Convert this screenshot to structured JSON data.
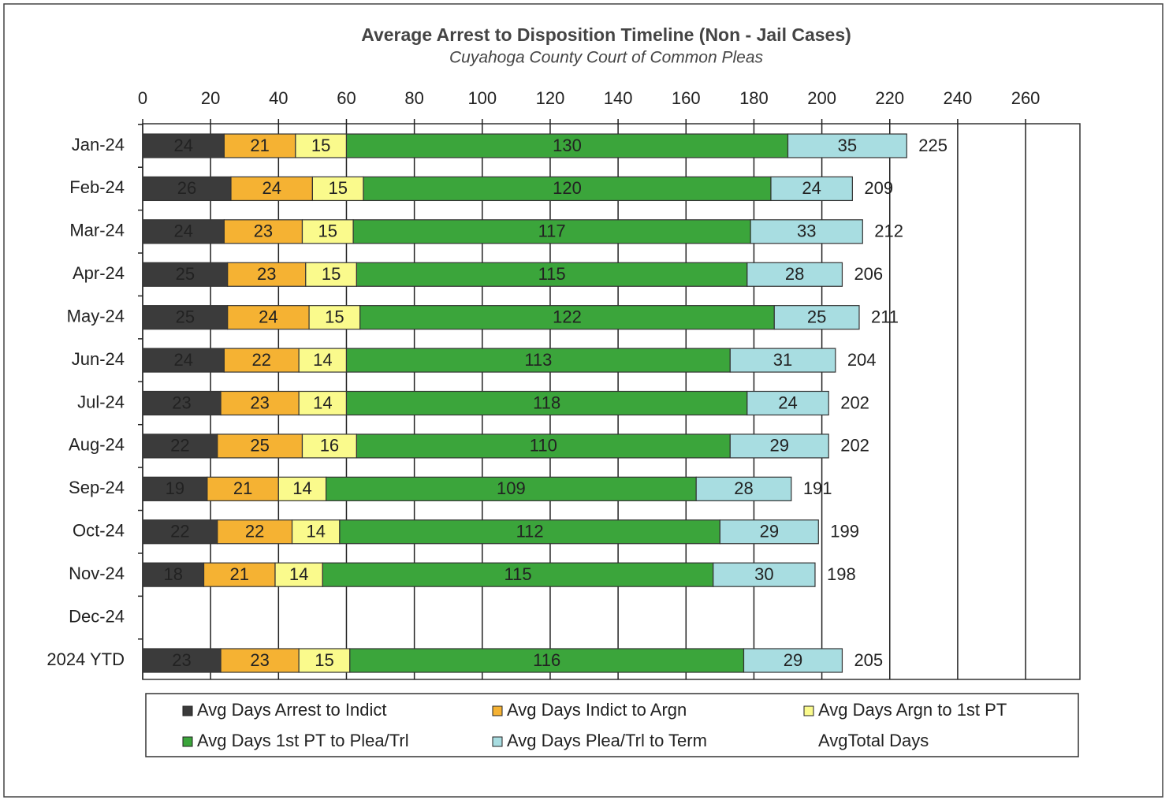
{
  "chart_data": {
    "type": "stacked-barh",
    "title": "Average Arrest to Disposition  Timeline (Non - Jail Cases)",
    "subtitle": "Cuyahoga County Court of Common Pleas",
    "categories": [
      "Jan-24",
      "Feb-24",
      "Mar-24",
      "Apr-24",
      "May-24",
      "Jun-24",
      "Jul-24",
      "Aug-24",
      "Sep-24",
      "Oct-24",
      "Nov-24",
      "Dec-24",
      "2024 YTD"
    ],
    "series": [
      {
        "name": "Avg Days Arrest to Indict",
        "color": "#3b3b3b",
        "values": [
          24,
          26,
          24,
          25,
          25,
          24,
          23,
          22,
          19,
          22,
          18,
          null,
          23
        ]
      },
      {
        "name": "Avg Days Indict to Argn",
        "color": "#f5b233",
        "values": [
          21,
          24,
          23,
          23,
          24,
          22,
          23,
          25,
          21,
          22,
          21,
          null,
          23
        ]
      },
      {
        "name": "Avg Days Argn to 1st PT",
        "color": "#fafa8c",
        "values": [
          15,
          15,
          15,
          15,
          15,
          14,
          14,
          16,
          14,
          14,
          14,
          null,
          15
        ]
      },
      {
        "name": "Avg Days 1st PT to Plea/Trl",
        "color": "#3ba53b",
        "values": [
          130,
          120,
          117,
          115,
          122,
          113,
          118,
          110,
          109,
          112,
          115,
          null,
          116
        ]
      },
      {
        "name": "Avg Days Plea/Trl to Term",
        "color": "#a8dde1",
        "values": [
          35,
          24,
          33,
          28,
          25,
          31,
          24,
          29,
          28,
          29,
          30,
          null,
          29
        ]
      }
    ],
    "totals": {
      "name": "AvgTotal Days",
      "color": "#e8202a",
      "values": [
        225,
        209,
        212,
        206,
        211,
        204,
        202,
        202,
        191,
        199,
        198,
        null,
        205
      ]
    },
    "xlim": [
      0,
      276
    ],
    "xticks": [
      0,
      20,
      40,
      60,
      80,
      100,
      120,
      140,
      160,
      180,
      200,
      220,
      240,
      260
    ],
    "grid": true
  }
}
